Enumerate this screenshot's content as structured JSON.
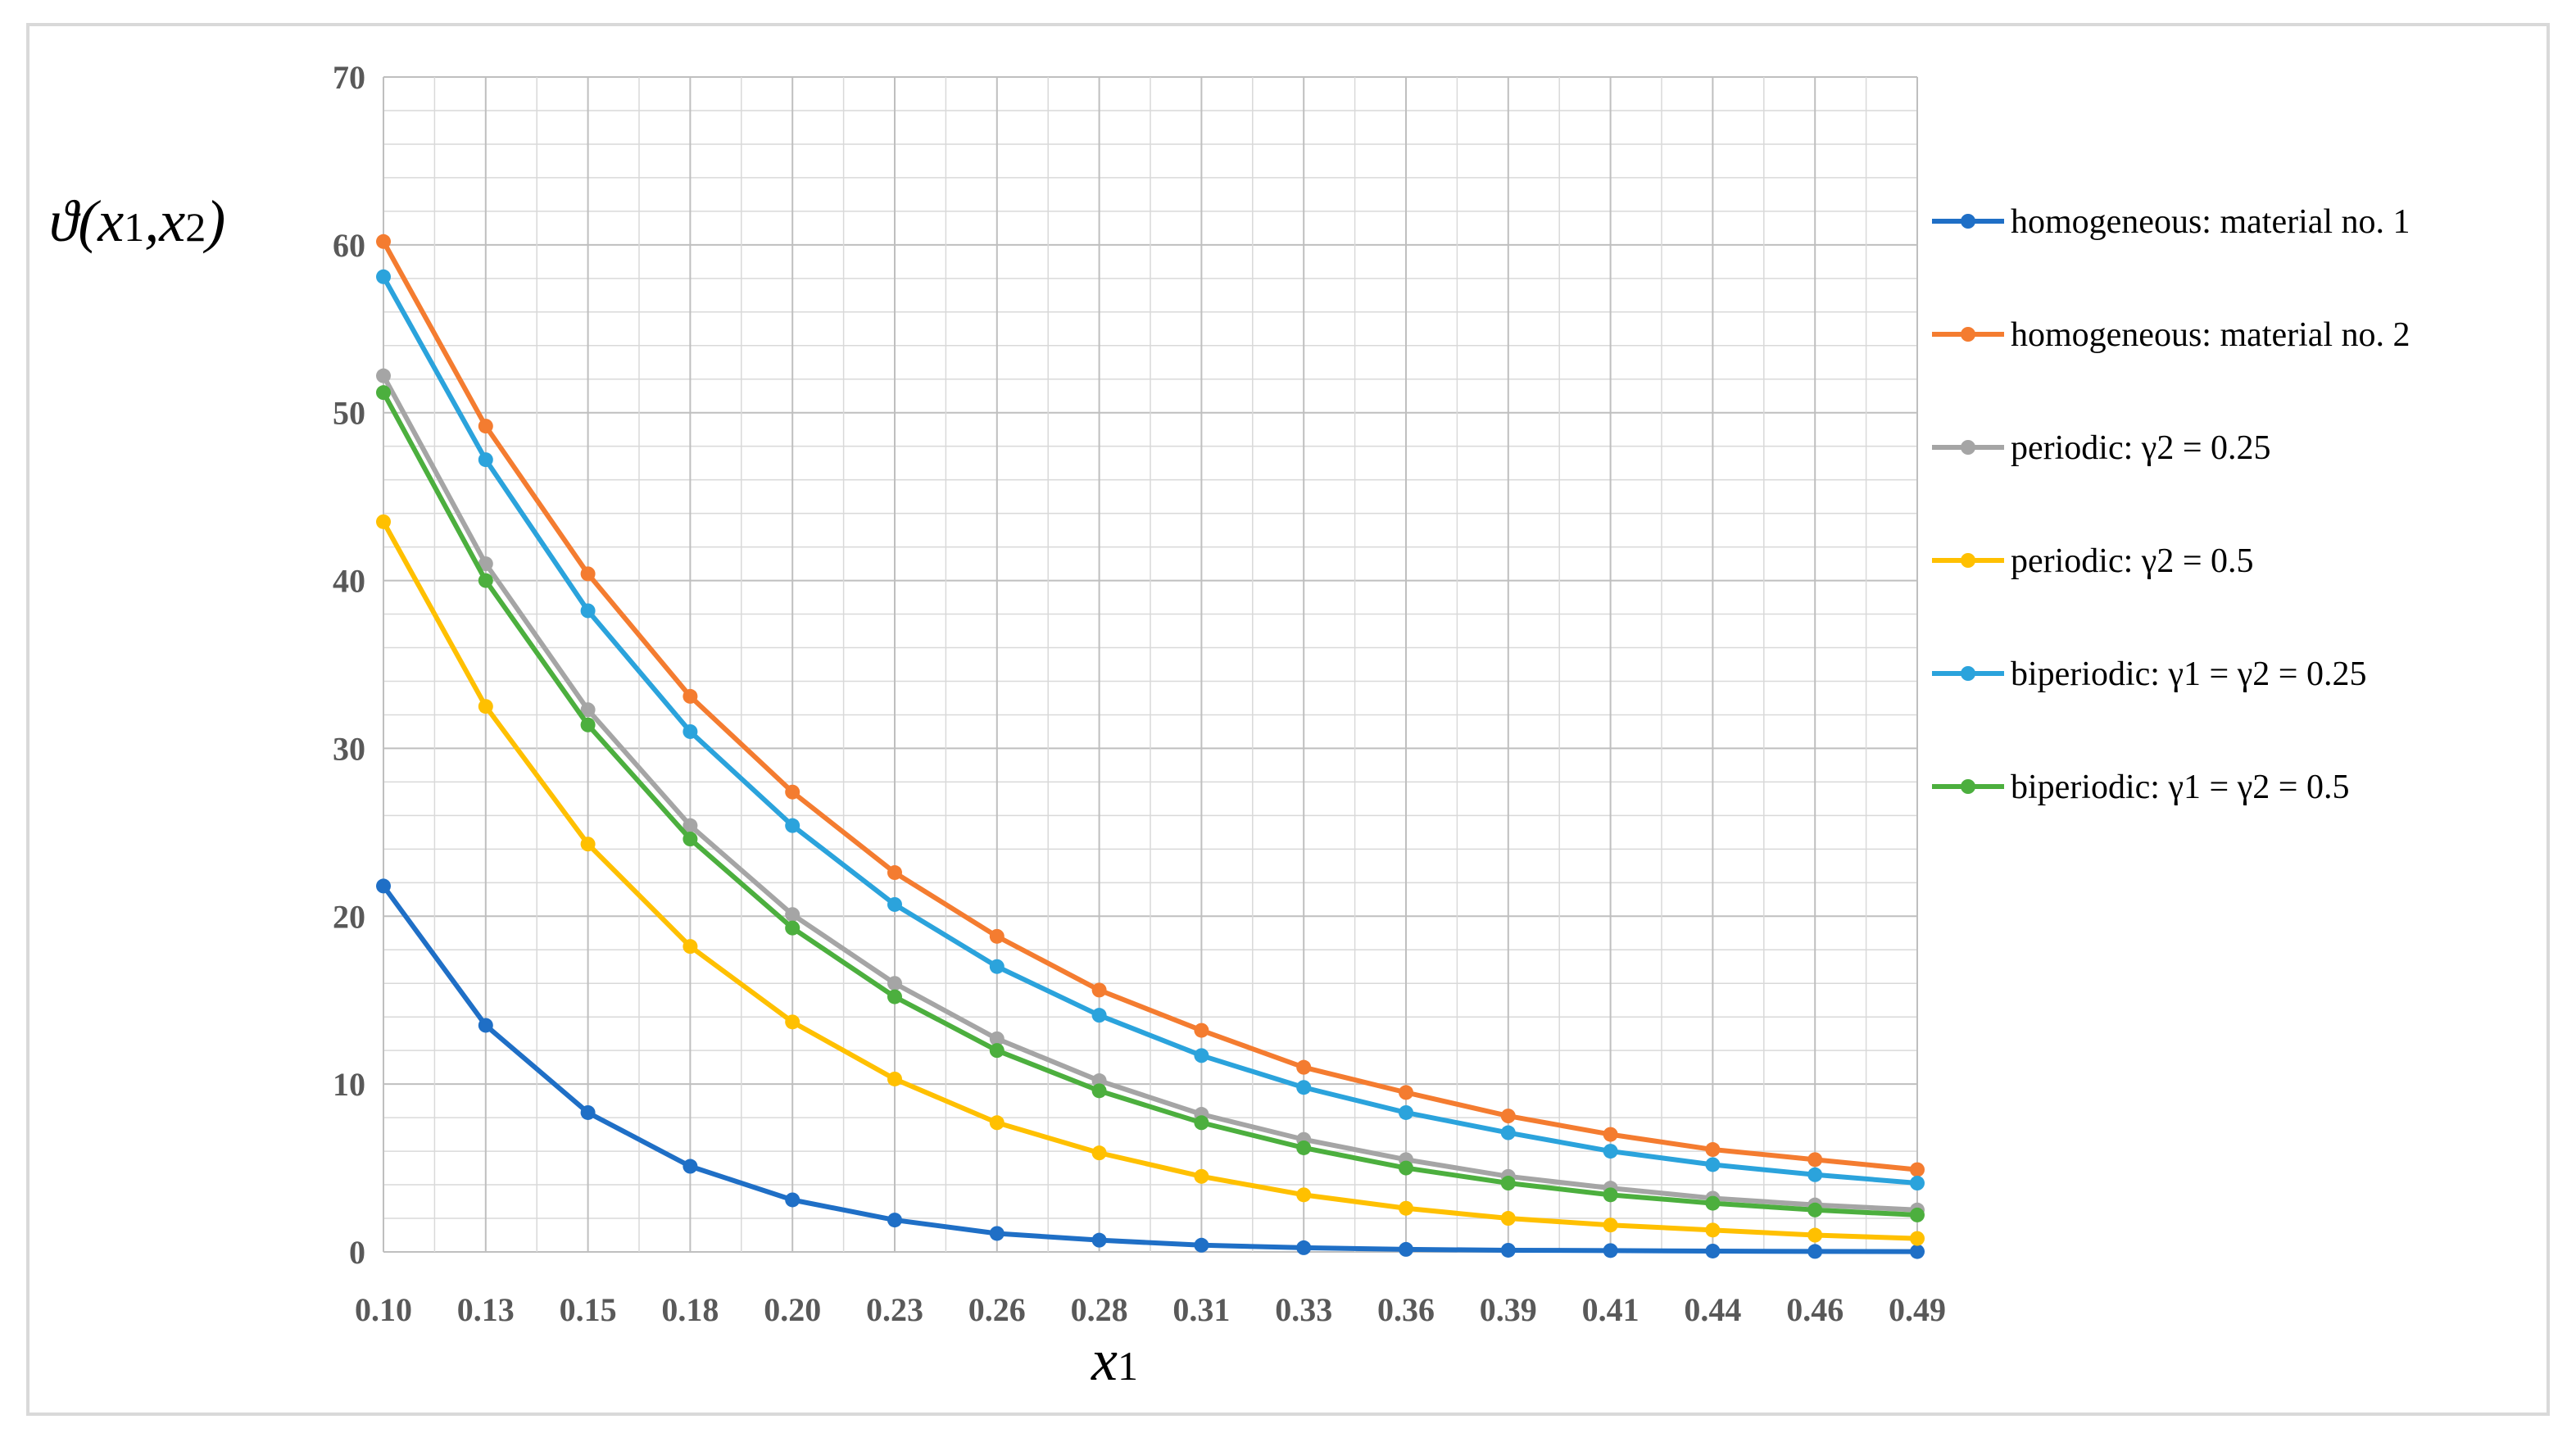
{
  "chart_data": {
    "type": "line",
    "xlabel": "x1",
    "ylabel": "ϑ(x1,x2)",
    "ylim": [
      0,
      70
    ],
    "y_ticks": [
      0,
      10,
      20,
      30,
      40,
      50,
      60,
      70
    ],
    "x_tick_labels": [
      "0.10",
      "0.13",
      "0.15",
      "0.18",
      "0.20",
      "0.23",
      "0.26",
      "0.28",
      "0.31",
      "0.33",
      "0.36",
      "0.39",
      "0.41",
      "0.44",
      "0.46",
      "0.49"
    ],
    "grid": true,
    "legend_position": "right",
    "series": [
      {
        "name": "homogeneous: material no. 1",
        "color": "#1f6fc6",
        "values": [
          21.8,
          13.5,
          8.3,
          5.1,
          3.1,
          1.9,
          1.1,
          0.7,
          0.4,
          0.25,
          0.15,
          0.1,
          0.08,
          0.05,
          0.03,
          0.02
        ]
      },
      {
        "name": "homogeneous: material no. 2",
        "color": "#f47c30",
        "values": [
          60.2,
          49.2,
          40.4,
          33.1,
          27.4,
          22.6,
          18.8,
          15.6,
          13.2,
          11.0,
          9.5,
          8.1,
          7.0,
          6.1,
          5.5,
          4.9
        ]
      },
      {
        "name": "periodic:  γ2 = 0.25",
        "color": "#a5a5a5",
        "values": [
          52.2,
          41.0,
          32.3,
          25.4,
          20.1,
          16.0,
          12.7,
          10.2,
          8.2,
          6.7,
          5.5,
          4.5,
          3.8,
          3.2,
          2.8,
          2.5
        ]
      },
      {
        "name": "periodic:  γ2 = 0.5",
        "color": "#ffc000",
        "values": [
          43.5,
          32.5,
          24.3,
          18.2,
          13.7,
          10.3,
          7.7,
          5.9,
          4.5,
          3.4,
          2.6,
          2.0,
          1.6,
          1.3,
          1.0,
          0.8
        ]
      },
      {
        "name": "biperiodic:  γ1 = γ2 = 0.25",
        "color": "#2ba3dc",
        "values": [
          58.1,
          47.2,
          38.2,
          31.0,
          25.4,
          20.7,
          17.0,
          14.1,
          11.7,
          9.8,
          8.3,
          7.1,
          6.0,
          5.2,
          4.6,
          4.1
        ]
      },
      {
        "name": "biperiodic:  γ1 = γ2 = 0.5",
        "color": "#4caf3e",
        "values": [
          51.2,
          40.0,
          31.4,
          24.6,
          19.3,
          15.2,
          12.0,
          9.6,
          7.7,
          6.2,
          5.0,
          4.1,
          3.4,
          2.9,
          2.5,
          2.2
        ]
      }
    ]
  }
}
